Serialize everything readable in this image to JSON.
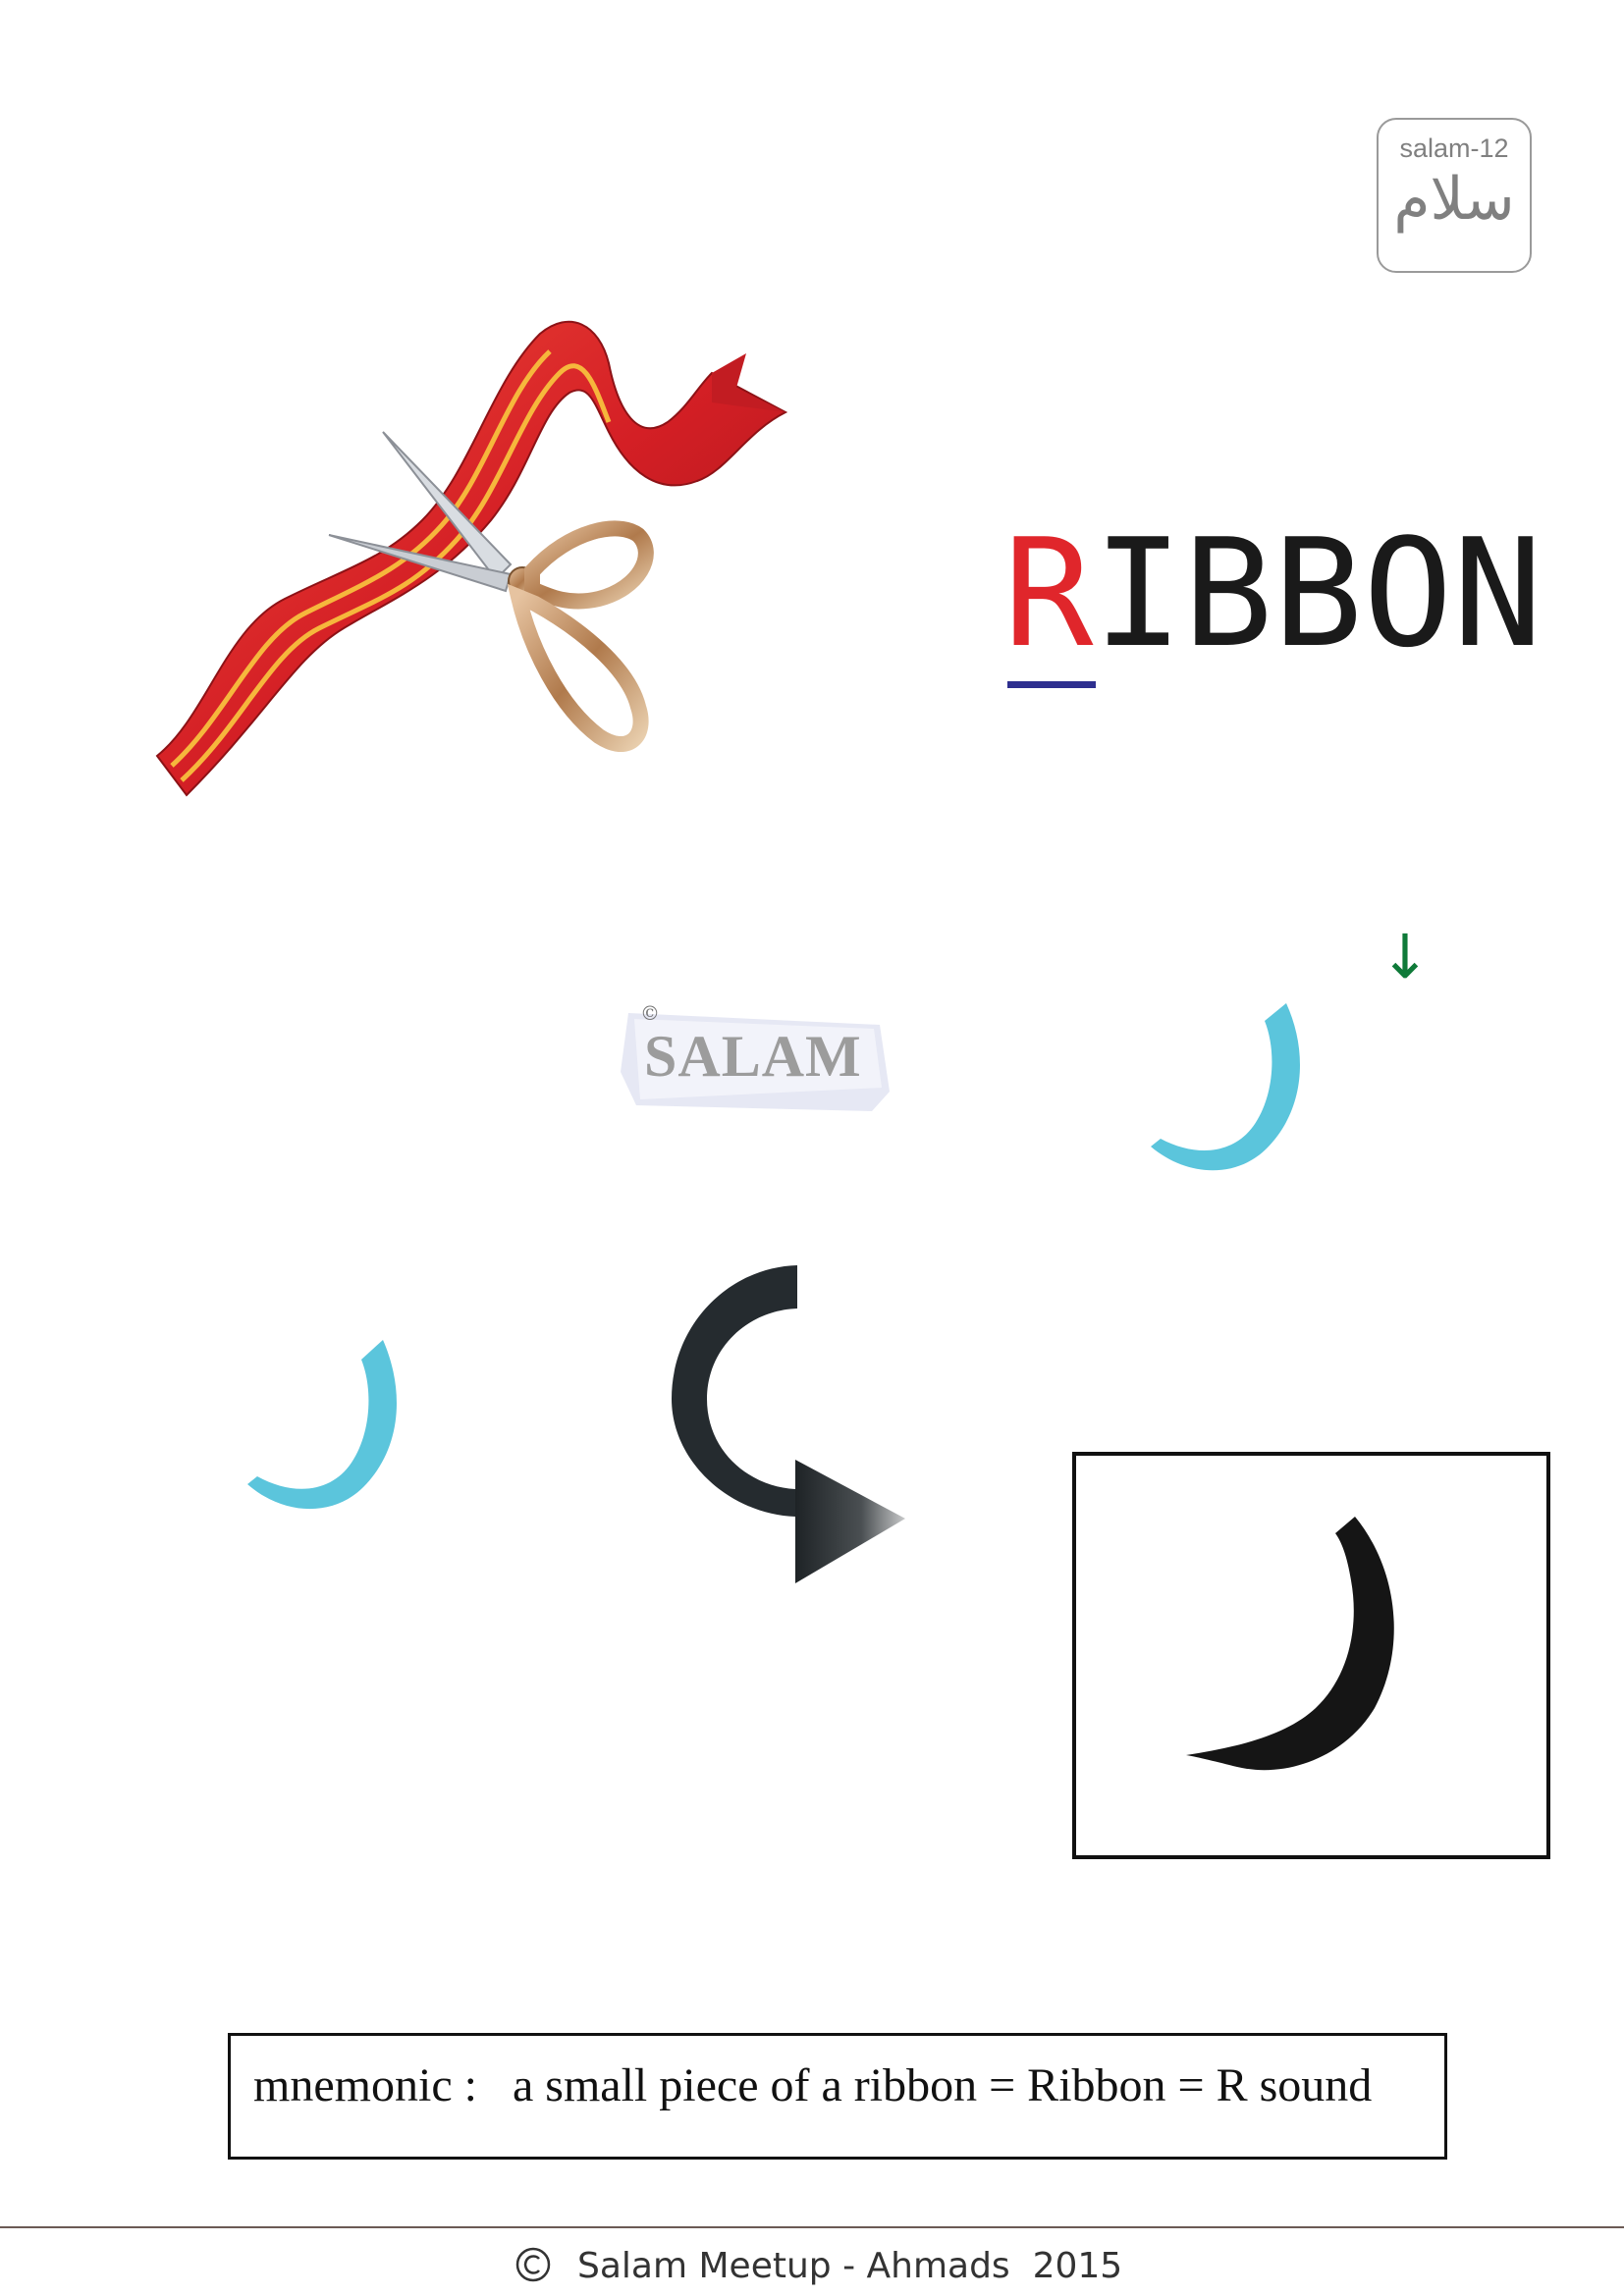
{
  "badge": {
    "code": "salam-12",
    "arabic": "سلام"
  },
  "word": {
    "first_letter": "R",
    "rest": "IBBON"
  },
  "watermark": {
    "copyright_symbol": "©",
    "text": "SALAM"
  },
  "down_arrow": "↓",
  "mnemonic": "mnemonic :   a small piece of a ribbon = Ribbon = R sound",
  "footer": {
    "text": "Salam Meetup - Ahmads  2015"
  },
  "colors": {
    "first_letter": "#e0262b",
    "underline": "#2e2f8f",
    "letter_light": "#5bc5dc",
    "arrow_green": "#0f7a39",
    "ribbon_red": "#d8262b",
    "ribbon_stripe": "#f6b73c"
  },
  "icons": [
    "ribbon-scissors-illustration",
    "curved-arrow-icon",
    "down-arrow-icon",
    "copyright-icon"
  ]
}
